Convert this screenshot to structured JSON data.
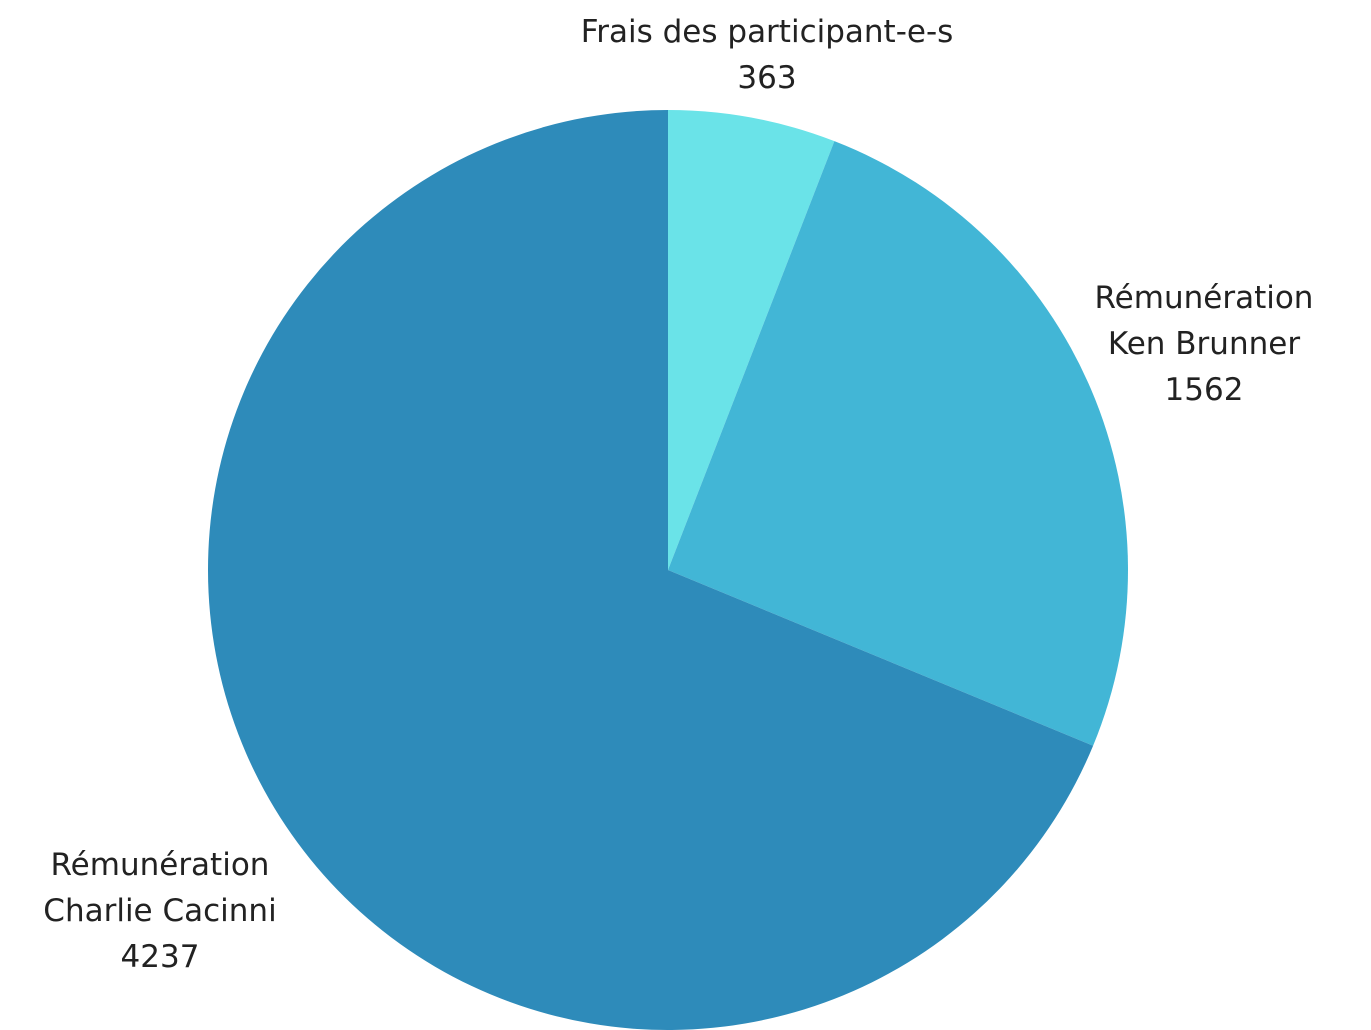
{
  "chart_data": {
    "type": "pie",
    "categories": [
      "Frais des participant-e-s",
      "Rémunération\nKen Brunner",
      "Rémunération\nCharlie Cacinni"
    ],
    "values": [
      363,
      1562,
      4237
    ],
    "colors": [
      "#6ae3e8",
      "#42b6d6",
      "#2e8bba"
    ]
  }
}
